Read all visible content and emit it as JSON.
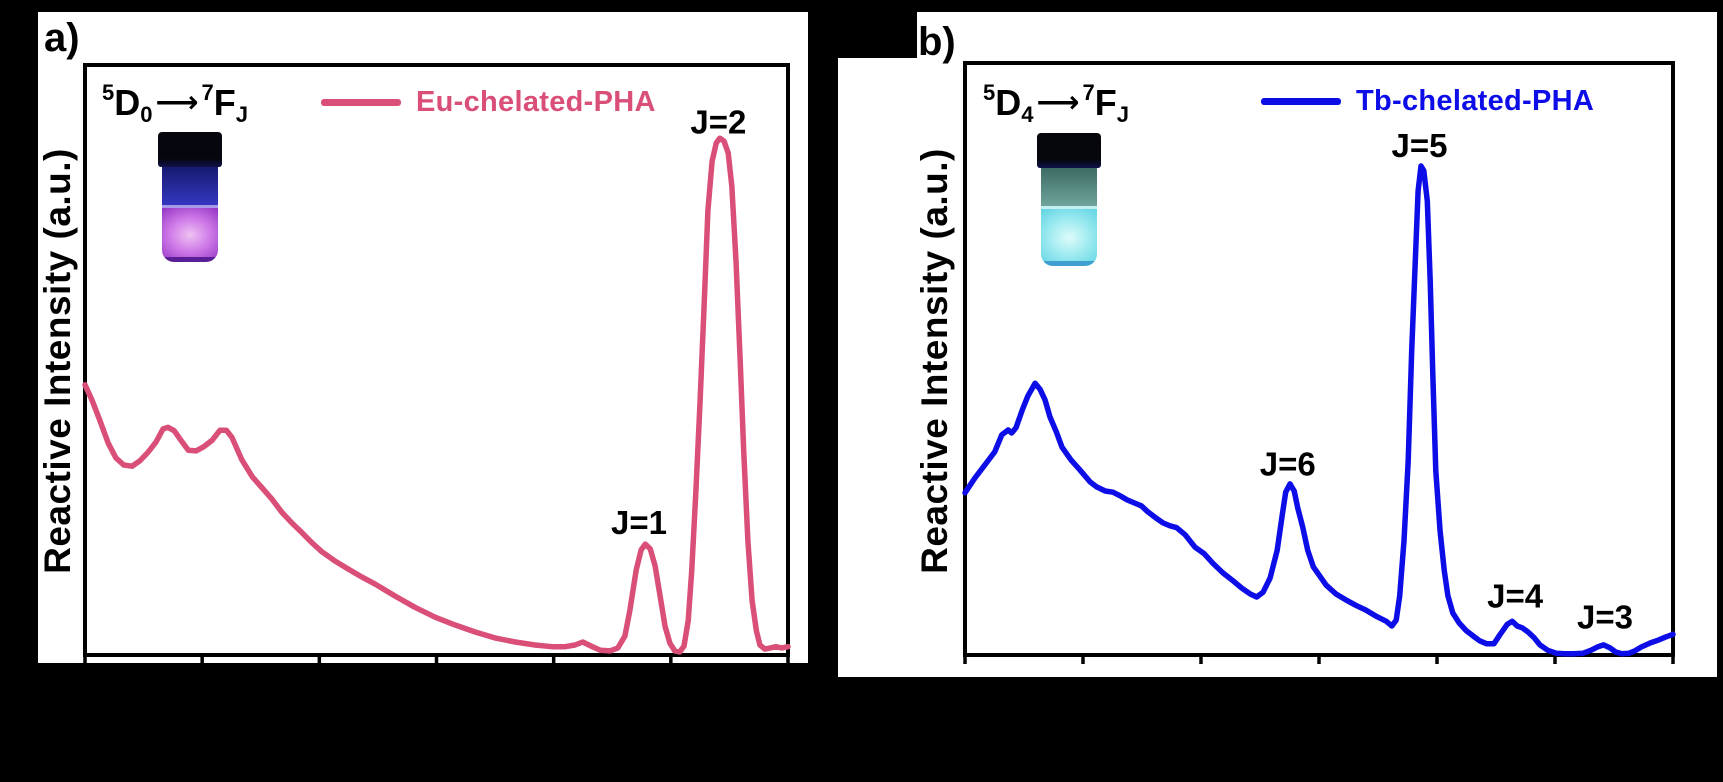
{
  "page": {
    "background": "#000000",
    "panel_background": "#ffffff",
    "frame_color": "#000000"
  },
  "panels": [
    {
      "id": "a",
      "label": "a)",
      "y_axis_label": "Reactive Intensity (a.u.)",
      "transition": {
        "upper_sup": "5",
        "upper_term": "D",
        "upper_sub": "0",
        "arrow": "⟶",
        "lower_sup": "7",
        "lower_term": "F",
        "lower_sub": "J"
      },
      "legend": {
        "label": "Eu-chelated-PHA",
        "color": "#d94f78"
      },
      "vial": {
        "description": "UV-illuminated vial photo, magenta-violet luminescence",
        "cap_color": "#06060f",
        "upper_top": "#171a70",
        "upper_bottom": "#3437c0",
        "interface": "#a89ae8",
        "glow_inner": "#eec2f2",
        "glow_mid": "#cf7ae8",
        "glow_outer": "#8f2ec0",
        "rim": "#5a1e96"
      }
    },
    {
      "id": "b",
      "label": "b)",
      "y_axis_label": "Reactive Intensity (a.u.)",
      "transition": {
        "upper_sup": "5",
        "upper_term": "D",
        "upper_sub": "4",
        "arrow": "⟶",
        "lower_sup": "7",
        "lower_term": "F",
        "lower_sub": "J"
      },
      "legend": {
        "label": "Tb-chelated-PHA",
        "color": "#0d0de8"
      },
      "vial": {
        "description": "UV-illuminated vial photo, cyan luminescence",
        "cap_color": "#05070d",
        "upper_top": "#3c6c64",
        "upper_bottom": "#6fa49a",
        "interface": "#c4eff1",
        "glow_inner": "#dffbfb",
        "glow_mid": "#9febf0",
        "glow_outer": "#5bd2e3",
        "rim": "#3e9fd0"
      }
    }
  ],
  "chart_data": [
    {
      "type": "line",
      "title": "",
      "xlabel": "",
      "ylabel": "Reactive Intensity (a.u.)",
      "x_unit": "axis fraction 0-1 (no tick labels visible in image)",
      "y_unit": "normalized intensity (a.u.)",
      "background": "#ffffff",
      "frame_color": "#000000",
      "x_axis": {
        "tick_count": 7,
        "labels_visible": false
      },
      "annotations": [
        {
          "text": "J=1",
          "x": 0.788,
          "y": 0.225
        },
        {
          "text": "J=2",
          "x": 0.901,
          "y": 0.903
        }
      ],
      "series": [
        {
          "name": "Eu-chelated-PHA",
          "color": "#d94f78",
          "points": [
            [
              0.0,
              0.458
            ],
            [
              0.01,
              0.432
            ],
            [
              0.021,
              0.398
            ],
            [
              0.033,
              0.359
            ],
            [
              0.044,
              0.334
            ],
            [
              0.055,
              0.322
            ],
            [
              0.067,
              0.32
            ],
            [
              0.078,
              0.329
            ],
            [
              0.09,
              0.344
            ],
            [
              0.101,
              0.361
            ],
            [
              0.111,
              0.383
            ],
            [
              0.118,
              0.386
            ],
            [
              0.127,
              0.38
            ],
            [
              0.137,
              0.363
            ],
            [
              0.147,
              0.347
            ],
            [
              0.158,
              0.346
            ],
            [
              0.169,
              0.353
            ],
            [
              0.181,
              0.364
            ],
            [
              0.192,
              0.381
            ],
            [
              0.201,
              0.381
            ],
            [
              0.209,
              0.369
            ],
            [
              0.223,
              0.331
            ],
            [
              0.238,
              0.302
            ],
            [
              0.252,
              0.283
            ],
            [
              0.266,
              0.264
            ],
            [
              0.28,
              0.242
            ],
            [
              0.294,
              0.224
            ],
            [
              0.309,
              0.207
            ],
            [
              0.323,
              0.19
            ],
            [
              0.337,
              0.175
            ],
            [
              0.356,
              0.159
            ],
            [
              0.374,
              0.146
            ],
            [
              0.391,
              0.134
            ],
            [
              0.413,
              0.12
            ],
            [
              0.441,
              0.1
            ],
            [
              0.469,
              0.081
            ],
            [
              0.498,
              0.064
            ],
            [
              0.526,
              0.051
            ],
            [
              0.555,
              0.039
            ],
            [
              0.583,
              0.029
            ],
            [
              0.612,
              0.022
            ],
            [
              0.64,
              0.017
            ],
            [
              0.664,
              0.014
            ],
            [
              0.683,
              0.014
            ],
            [
              0.697,
              0.017
            ],
            [
              0.708,
              0.022
            ],
            [
              0.72,
              0.015
            ],
            [
              0.733,
              0.008
            ],
            [
              0.747,
              0.007
            ],
            [
              0.758,
              0.012
            ],
            [
              0.768,
              0.032
            ],
            [
              0.775,
              0.075
            ],
            [
              0.784,
              0.144
            ],
            [
              0.791,
              0.178
            ],
            [
              0.797,
              0.188
            ],
            [
              0.804,
              0.18
            ],
            [
              0.811,
              0.151
            ],
            [
              0.818,
              0.1
            ],
            [
              0.825,
              0.049
            ],
            [
              0.832,
              0.02
            ],
            [
              0.839,
              0.007
            ],
            [
              0.846,
              0.005
            ],
            [
              0.852,
              0.015
            ],
            [
              0.858,
              0.058
            ],
            [
              0.863,
              0.142
            ],
            [
              0.869,
              0.278
            ],
            [
              0.875,
              0.431
            ],
            [
              0.881,
              0.6
            ],
            [
              0.886,
              0.753
            ],
            [
              0.892,
              0.837
            ],
            [
              0.898,
              0.868
            ],
            [
              0.903,
              0.876
            ],
            [
              0.909,
              0.871
            ],
            [
              0.915,
              0.851
            ],
            [
              0.92,
              0.795
            ],
            [
              0.926,
              0.668
            ],
            [
              0.932,
              0.498
            ],
            [
              0.937,
              0.346
            ],
            [
              0.943,
              0.193
            ],
            [
              0.949,
              0.092
            ],
            [
              0.955,
              0.041
            ],
            [
              0.96,
              0.017
            ],
            [
              0.967,
              0.01
            ],
            [
              0.975,
              0.012
            ],
            [
              0.983,
              0.014
            ],
            [
              0.991,
              0.012
            ],
            [
              1.0,
              0.014
            ]
          ]
        }
      ]
    },
    {
      "type": "line",
      "title": "",
      "xlabel": "",
      "ylabel": "Reactive Intensity (a.u.)",
      "x_unit": "axis fraction 0-1 (no tick labels visible in image)",
      "y_unit": "normalized intensity (a.u.)",
      "background": "#ffffff",
      "frame_color": "#000000",
      "x_axis": {
        "tick_count": 7,
        "labels_visible": false
      },
      "annotations": [
        {
          "text": "J=6",
          "x": 0.456,
          "y": 0.323
        },
        {
          "text": "J=5",
          "x": 0.642,
          "y": 0.861
        },
        {
          "text": "J=4",
          "x": 0.777,
          "y": 0.1
        },
        {
          "text": "J=3",
          "x": 0.904,
          "y": 0.064
        }
      ],
      "series": [
        {
          "name": "Tb-chelated-PHA",
          "color": "#0d0de8",
          "points": [
            [
              0.0,
              0.274
            ],
            [
              0.014,
              0.299
            ],
            [
              0.028,
              0.321
            ],
            [
              0.042,
              0.343
            ],
            [
              0.052,
              0.372
            ],
            [
              0.061,
              0.38
            ],
            [
              0.066,
              0.375
            ],
            [
              0.072,
              0.384
            ],
            [
              0.081,
              0.414
            ],
            [
              0.089,
              0.438
            ],
            [
              0.099,
              0.459
            ],
            [
              0.106,
              0.449
            ],
            [
              0.113,
              0.431
            ],
            [
              0.12,
              0.402
            ],
            [
              0.129,
              0.377
            ],
            [
              0.137,
              0.351
            ],
            [
              0.15,
              0.329
            ],
            [
              0.162,
              0.313
            ],
            [
              0.177,
              0.292
            ],
            [
              0.186,
              0.284
            ],
            [
              0.198,
              0.277
            ],
            [
              0.209,
              0.275
            ],
            [
              0.219,
              0.269
            ],
            [
              0.229,
              0.262
            ],
            [
              0.239,
              0.257
            ],
            [
              0.249,
              0.252
            ],
            [
              0.258,
              0.242
            ],
            [
              0.27,
              0.231
            ],
            [
              0.28,
              0.223
            ],
            [
              0.29,
              0.218
            ],
            [
              0.299,
              0.215
            ],
            [
              0.311,
              0.203
            ],
            [
              0.325,
              0.182
            ],
            [
              0.338,
              0.171
            ],
            [
              0.35,
              0.155
            ],
            [
              0.364,
              0.139
            ],
            [
              0.379,
              0.125
            ],
            [
              0.391,
              0.113
            ],
            [
              0.403,
              0.103
            ],
            [
              0.412,
              0.098
            ],
            [
              0.421,
              0.106
            ],
            [
              0.431,
              0.13
            ],
            [
              0.441,
              0.177
            ],
            [
              0.448,
              0.236
            ],
            [
              0.453,
              0.275
            ],
            [
              0.459,
              0.289
            ],
            [
              0.465,
              0.277
            ],
            [
              0.47,
              0.248
            ],
            [
              0.477,
              0.216
            ],
            [
              0.484,
              0.177
            ],
            [
              0.492,
              0.149
            ],
            [
              0.499,
              0.137
            ],
            [
              0.51,
              0.118
            ],
            [
              0.524,
              0.103
            ],
            [
              0.538,
              0.093
            ],
            [
              0.552,
              0.084
            ],
            [
              0.566,
              0.076
            ],
            [
              0.58,
              0.066
            ],
            [
              0.595,
              0.057
            ],
            [
              0.603,
              0.049
            ],
            [
              0.609,
              0.059
            ],
            [
              0.614,
              0.1
            ],
            [
              0.62,
              0.193
            ],
            [
              0.626,
              0.328
            ],
            [
              0.631,
              0.514
            ],
            [
              0.636,
              0.666
            ],
            [
              0.64,
              0.784
            ],
            [
              0.644,
              0.826
            ],
            [
              0.648,
              0.818
            ],
            [
              0.653,
              0.767
            ],
            [
              0.657,
              0.632
            ],
            [
              0.661,
              0.463
            ],
            [
              0.665,
              0.311
            ],
            [
              0.671,
              0.209
            ],
            [
              0.677,
              0.142
            ],
            [
              0.682,
              0.1
            ],
            [
              0.689,
              0.071
            ],
            [
              0.698,
              0.054
            ],
            [
              0.708,
              0.041
            ],
            [
              0.718,
              0.032
            ],
            [
              0.727,
              0.024
            ],
            [
              0.737,
              0.019
            ],
            [
              0.747,
              0.019
            ],
            [
              0.756,
              0.035
            ],
            [
              0.766,
              0.052
            ],
            [
              0.773,
              0.057
            ],
            [
              0.78,
              0.049
            ],
            [
              0.787,
              0.046
            ],
            [
              0.795,
              0.039
            ],
            [
              0.804,
              0.029
            ],
            [
              0.812,
              0.017
            ],
            [
              0.823,
              0.008
            ],
            [
              0.835,
              0.003
            ],
            [
              0.847,
              0.002
            ],
            [
              0.86,
              0.002
            ],
            [
              0.873,
              0.003
            ],
            [
              0.884,
              0.008
            ],
            [
              0.894,
              0.014
            ],
            [
              0.902,
              0.017
            ],
            [
              0.911,
              0.012
            ],
            [
              0.919,
              0.005
            ],
            [
              0.928,
              0.002
            ],
            [
              0.938,
              0.003
            ],
            [
              0.946,
              0.007
            ],
            [
              0.956,
              0.014
            ],
            [
              0.967,
              0.02
            ],
            [
              0.979,
              0.025
            ],
            [
              0.989,
              0.03
            ],
            [
              1.0,
              0.035
            ]
          ]
        }
      ]
    }
  ]
}
